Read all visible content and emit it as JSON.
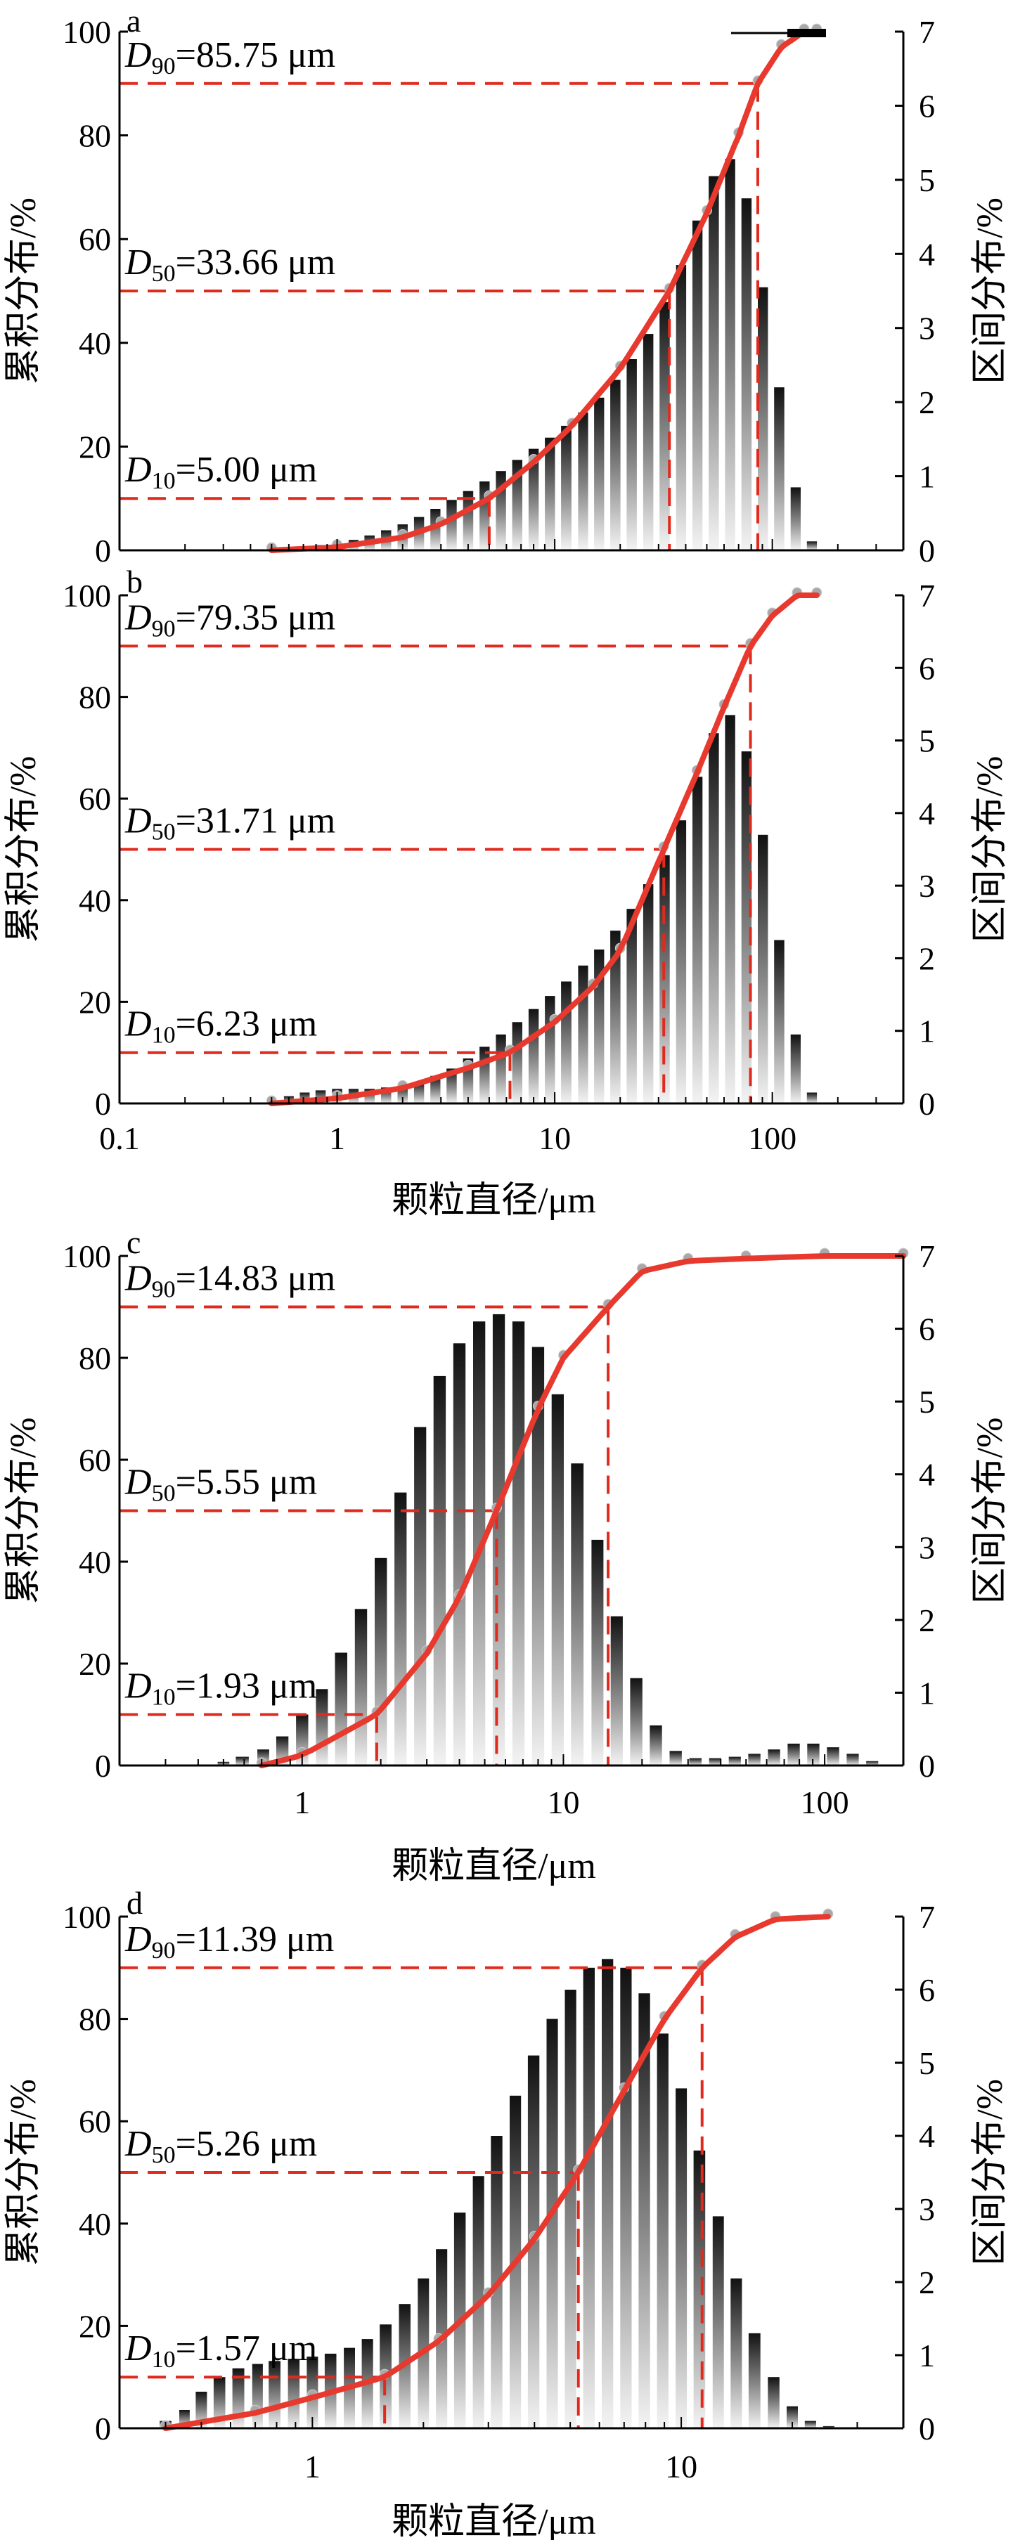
{
  "figure": {
    "colors": {
      "curve": "#e8392e",
      "dash": "#e02a1e",
      "points": "#a8a8a8",
      "bar_dark": "#111111",
      "bar_light": "#f2f2f2"
    },
    "xlabel": "颗粒直径/μm",
    "ylabel_left": "累积分布/%",
    "ylabel_right": "区间分布/%"
  },
  "chart_data": [
    {
      "type": "bar",
      "panel": "a",
      "x_scale": "log",
      "xlim": [
        0.1,
        400
      ],
      "ylim_left": [
        0,
        100
      ],
      "ylim_right": [
        0,
        7
      ],
      "yticks_left": [
        "0",
        "20",
        "40",
        "60",
        "80",
        "100"
      ],
      "yticks_right": [
        "0",
        "1",
        "2",
        "3",
        "4",
        "5",
        "6",
        "7"
      ],
      "xticks": [],
      "xlabel": "",
      "ylabel_left": "累积分布/%",
      "ylabel_right": "区间分布/%",
      "annotations": [
        {
          "sub": "90",
          "value": 85.75,
          "label": "=85.75 μm",
          "y": 90
        },
        {
          "sub": "50",
          "value": 33.66,
          "label": "=33.66 μm",
          "y": 50
        },
        {
          "sub": "10",
          "value": 5.0,
          "label": "=5.00 μm",
          "y": 10
        }
      ],
      "interval_series": {
        "name": "区间分布",
        "x": [
          0.6,
          0.71,
          0.84,
          1.0,
          1.19,
          1.41,
          1.68,
          2.0,
          2.38,
          2.83,
          3.36,
          4.0,
          4.76,
          5.66,
          6.73,
          8.0,
          9.51,
          11.3,
          13.5,
          16.0,
          19.0,
          22.6,
          26.9,
          32.0,
          38.1,
          45.3,
          53.8,
          64.0,
          76.1,
          90.5,
          107.6,
          128,
          152
        ],
        "values": [
          0.02,
          0.04,
          0.07,
          0.1,
          0.14,
          0.2,
          0.27,
          0.35,
          0.45,
          0.56,
          0.68,
          0.8,
          0.93,
          1.07,
          1.22,
          1.37,
          1.52,
          1.68,
          1.86,
          2.06,
          2.3,
          2.58,
          2.92,
          3.35,
          3.85,
          4.45,
          5.05,
          5.28,
          4.75,
          3.55,
          2.2,
          0.85,
          0.12
        ]
      },
      "cumulative_series": {
        "name": "累积分布",
        "x": [
          0.5,
          1,
          2,
          3,
          5,
          8,
          12,
          20,
          33.66,
          50,
          70,
          85.75,
          110,
          140,
          160
        ],
        "values": [
          0,
          0.6,
          2.5,
          5,
          10,
          17,
          24,
          35,
          50,
          65,
          80,
          90,
          97,
          100,
          100
        ]
      }
    },
    {
      "type": "bar",
      "panel": "b",
      "x_scale": "log",
      "xlim": [
        0.1,
        400
      ],
      "ylim_left": [
        0,
        100
      ],
      "ylim_right": [
        0,
        7
      ],
      "yticks_left": [
        "0",
        "20",
        "40",
        "60",
        "80",
        "100"
      ],
      "yticks_right": [
        "0",
        "1",
        "2",
        "3",
        "4",
        "5",
        "6",
        "7"
      ],
      "xticks": [
        "0.1",
        "1",
        "10",
        "100"
      ],
      "xlabel": "颗粒直径/μm",
      "ylabel_left": "累积分布/%",
      "ylabel_right": "区间分布/%",
      "annotations": [
        {
          "sub": "90",
          "value": 79.35,
          "label": "=79.35 μm",
          "y": 90
        },
        {
          "sub": "50",
          "value": 31.71,
          "label": "=31.71 μm",
          "y": 50
        },
        {
          "sub": "10",
          "value": 6.23,
          "label": "=6.23 μm",
          "y": 10
        }
      ],
      "interval_series": {
        "name": "区间分布",
        "x": [
          0.6,
          0.71,
          0.84,
          1.0,
          1.19,
          1.41,
          1.68,
          2.0,
          2.38,
          2.83,
          3.36,
          4.0,
          4.76,
          5.66,
          6.73,
          8.0,
          9.51,
          11.3,
          13.5,
          16.0,
          19.0,
          22.6,
          26.9,
          32.0,
          38.1,
          45.3,
          53.8,
          64.0,
          76.1,
          90.5,
          107.6,
          128,
          152
        ],
        "values": [
          0.1,
          0.15,
          0.18,
          0.2,
          0.2,
          0.2,
          0.22,
          0.25,
          0.3,
          0.38,
          0.48,
          0.62,
          0.78,
          0.95,
          1.12,
          1.3,
          1.48,
          1.68,
          1.9,
          2.12,
          2.38,
          2.68,
          3.02,
          3.42,
          3.9,
          4.5,
          5.1,
          5.35,
          4.85,
          3.7,
          2.25,
          0.95,
          0.15
        ]
      },
      "cumulative_series": {
        "name": "累积分布",
        "x": [
          0.5,
          1,
          2,
          4,
          6.23,
          10,
          15,
          20,
          31.71,
          45,
          60,
          79.35,
          100,
          130,
          160
        ],
        "values": [
          0,
          1,
          3,
          7,
          10,
          16,
          23,
          30,
          50,
          65,
          78,
          90,
          96,
          100,
          100
        ]
      }
    },
    {
      "type": "bar",
      "panel": "c",
      "x_scale": "log",
      "xlim": [
        0.2,
        200
      ],
      "ylim_left": [
        0,
        100
      ],
      "ylim_right": [
        0,
        7
      ],
      "yticks_left": [
        "0",
        "20",
        "40",
        "60",
        "80",
        "100"
      ],
      "yticks_right": [
        "0",
        "1",
        "2",
        "3",
        "4",
        "5",
        "6",
        "7"
      ],
      "xticks": [
        "1",
        "10",
        "100"
      ],
      "xlabel": "颗粒直径/μm",
      "ylabel_left": "累积分布/%",
      "ylabel_right": "区间分布/%",
      "annotations": [
        {
          "sub": "90",
          "value": 14.83,
          "label": "=14.83 μm",
          "y": 90
        },
        {
          "sub": "50",
          "value": 5.55,
          "label": "=5.55 μm",
          "y": 50
        },
        {
          "sub": "10",
          "value": 1.93,
          "label": "=1.93 μm",
          "y": 10
        }
      ],
      "interval_series": {
        "name": "区间分布",
        "x": [
          0.5,
          0.59,
          0.71,
          0.84,
          1.0,
          1.19,
          1.41,
          1.68,
          2.0,
          2.38,
          2.83,
          3.36,
          4.0,
          4.76,
          5.66,
          6.73,
          8.0,
          9.51,
          11.3,
          13.5,
          16.0,
          19.0,
          22.6,
          26.9,
          32.0,
          38.1,
          45.3,
          53.8,
          64.0,
          76.1,
          90.5,
          107.6,
          128,
          152
        ],
        "values": [
          0.05,
          0.12,
          0.22,
          0.4,
          0.7,
          1.05,
          1.55,
          2.15,
          2.85,
          3.75,
          4.65,
          5.35,
          5.8,
          6.1,
          6.2,
          6.1,
          5.75,
          5.1,
          4.15,
          3.1,
          2.05,
          1.2,
          0.55,
          0.2,
          0.1,
          0.1,
          0.12,
          0.16,
          0.22,
          0.3,
          0.3,
          0.25,
          0.16,
          0.06
        ]
      },
      "cumulative_series": {
        "name": "累积分布",
        "x": [
          0.7,
          1,
          1.93,
          3,
          4,
          5.55,
          8,
          10,
          14.83,
          20,
          30,
          50,
          100,
          200
        ],
        "values": [
          0,
          2,
          10,
          22,
          33,
          50,
          70,
          80,
          90,
          97,
          99,
          99.5,
          100,
          100
        ]
      }
    },
    {
      "type": "bar",
      "panel": "d",
      "x_scale": "log",
      "xlim": [
        0.3,
        40
      ],
      "ylim_left": [
        0,
        100
      ],
      "ylim_right": [
        0,
        7
      ],
      "yticks_left": [
        "0",
        "20",
        "40",
        "60",
        "80",
        "100"
      ],
      "yticks_right": [
        "0",
        "1",
        "2",
        "3",
        "4",
        "5",
        "6",
        "7"
      ],
      "xticks": [
        "1",
        "10"
      ],
      "xlabel": "颗粒直径/μm",
      "ylabel_left": "累积分布/%",
      "ylabel_right": "区间分布/%",
      "annotations": [
        {
          "sub": "90",
          "value": 11.39,
          "label": "=11.39 μm",
          "y": 90
        },
        {
          "sub": "50",
          "value": 5.26,
          "label": "=5.26 μm",
          "y": 50
        },
        {
          "sub": "10",
          "value": 1.57,
          "label": "=1.57 μm",
          "y": 10
        }
      ],
      "interval_series": {
        "name": "区间分布",
        "x": [
          0.4,
          0.45,
          0.5,
          0.56,
          0.63,
          0.71,
          0.79,
          0.89,
          1.0,
          1.12,
          1.26,
          1.41,
          1.58,
          1.78,
          2.0,
          2.24,
          2.51,
          2.82,
          3.16,
          3.55,
          3.98,
          4.47,
          5.01,
          5.62,
          6.31,
          7.08,
          7.94,
          8.91,
          10.0,
          11.2,
          12.6,
          14.1,
          15.8,
          17.8,
          20.0,
          22.4,
          25.1
        ],
        "values": [
          0.1,
          0.25,
          0.5,
          0.7,
          0.82,
          0.88,
          0.92,
          0.95,
          0.98,
          1.02,
          1.1,
          1.22,
          1.42,
          1.7,
          2.05,
          2.45,
          2.95,
          3.45,
          4.0,
          4.55,
          5.1,
          5.6,
          6.0,
          6.3,
          6.42,
          6.3,
          5.95,
          5.4,
          4.65,
          3.8,
          2.9,
          2.05,
          1.3,
          0.7,
          0.3,
          0.1,
          0.03
        ]
      },
      "cumulative_series": {
        "name": "累积分布",
        "x": [
          0.4,
          0.7,
          1.0,
          1.57,
          2.2,
          3.0,
          4.0,
          5.26,
          7.0,
          9.0,
          11.39,
          14,
          18,
          25
        ],
        "values": [
          0,
          3,
          6,
          10,
          17,
          26,
          37,
          50,
          66,
          80,
          90,
          96,
          99.5,
          100
        ]
      }
    }
  ]
}
